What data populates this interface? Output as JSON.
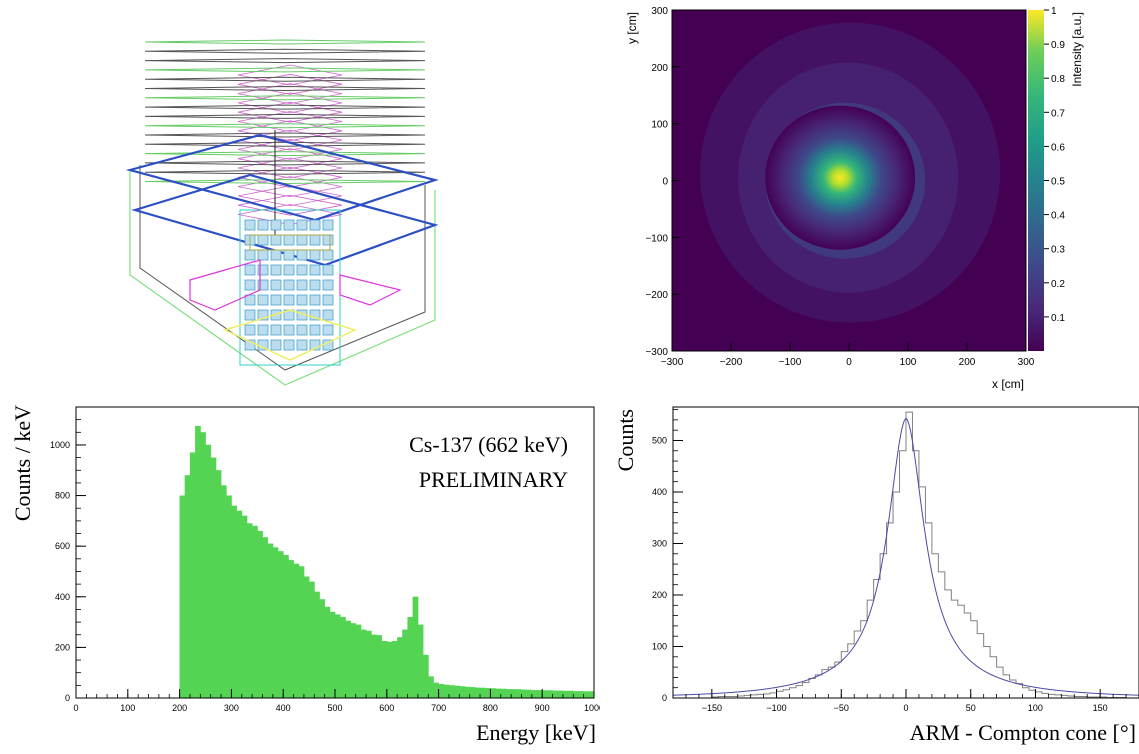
{
  "chart_data": [
    {
      "type": "image",
      "description_name": "detector-geometry"
    },
    {
      "type": "heatmap",
      "xlabel": "x [cm]",
      "ylabel": "y [cm]",
      "zlabel": "Intensity [a.u.]",
      "xlim": [
        -300,
        300
      ],
      "ylim": [
        -300,
        300
      ],
      "zlim": [
        0,
        1
      ],
      "x_ticks": [
        -300,
        -200,
        -100,
        0,
        100,
        200,
        300
      ],
      "y_ticks": [
        -300,
        -200,
        -100,
        0,
        100,
        200,
        300
      ],
      "z_ticks": [
        0.1,
        0.2,
        0.3,
        0.4,
        0.5,
        0.6,
        0.7,
        0.8,
        0.9,
        1
      ],
      "peak": {
        "x": -15,
        "y": 5,
        "value": 1
      },
      "colormap": "viridis"
    },
    {
      "type": "bar",
      "subtype": "histogram",
      "xlabel": "Energy [keV]",
      "ylabel": "Counts / keV",
      "annotations": [
        "Cs-137 (662 keV)",
        "PRELIMINARY"
      ],
      "xlim": [
        0,
        1000
      ],
      "ylim": [
        0,
        1150
      ],
      "x_ticks": [
        0,
        100,
        200,
        300,
        400,
        500,
        600,
        700,
        800,
        900,
        1000
      ],
      "y_ticks": [
        0,
        200,
        400,
        600,
        800,
        1000
      ],
      "fill_color": "#55d454",
      "bin_width": 10,
      "x": [
        200,
        210,
        220,
        230,
        240,
        250,
        260,
        270,
        280,
        290,
        300,
        310,
        320,
        330,
        340,
        350,
        360,
        370,
        380,
        390,
        400,
        410,
        420,
        430,
        440,
        450,
        460,
        470,
        480,
        490,
        500,
        510,
        520,
        530,
        540,
        550,
        560,
        570,
        580,
        590,
        600,
        610,
        620,
        630,
        640,
        650,
        660,
        670,
        680,
        690,
        700,
        710,
        720,
        730,
        740,
        750,
        760,
        770,
        780,
        790,
        800,
        810,
        820,
        830,
        840,
        850,
        860,
        870,
        880,
        890,
        900,
        910,
        920,
        930,
        940,
        950,
        960,
        970,
        980,
        990
      ],
      "values": [
        800,
        880,
        970,
        1075,
        1050,
        1000,
        950,
        900,
        840,
        800,
        760,
        740,
        720,
        690,
        680,
        660,
        635,
        610,
        595,
        580,
        565,
        545,
        530,
        520,
        480,
        460,
        420,
        390,
        360,
        340,
        330,
        320,
        305,
        295,
        290,
        270,
        265,
        250,
        248,
        225,
        222,
        225,
        240,
        270,
        320,
        400,
        290,
        170,
        85,
        60,
        55,
        52,
        50,
        48,
        46,
        44,
        43,
        41,
        40,
        39,
        38,
        37,
        36,
        35,
        35,
        34,
        33,
        32,
        31,
        31,
        30,
        30,
        29,
        29,
        28,
        28,
        27,
        27,
        26,
        26
      ]
    },
    {
      "type": "line",
      "subtype": "histogram-with-fit",
      "xlabel": "ARM - Compton cone [°]",
      "ylabel": "Counts",
      "xlim": [
        -180,
        180
      ],
      "ylim": [
        0,
        565
      ],
      "x_ticks": [
        -150,
        -100,
        -50,
        0,
        50,
        100,
        150
      ],
      "y_ticks": [
        0,
        100,
        200,
        300,
        400,
        500
      ],
      "hist_color": "#808080",
      "fit_color": "#4a4aa8",
      "bin_width": 5,
      "x": [
        -180,
        -175,
        -170,
        -165,
        -160,
        -155,
        -150,
        -145,
        -140,
        -135,
        -130,
        -125,
        -120,
        -115,
        -110,
        -105,
        -100,
        -95,
        -90,
        -85,
        -80,
        -75,
        -70,
        -65,
        -60,
        -55,
        -50,
        -45,
        -40,
        -35,
        -30,
        -25,
        -20,
        -15,
        -10,
        -5,
        0,
        5,
        10,
        15,
        20,
        25,
        30,
        35,
        40,
        45,
        50,
        55,
        60,
        65,
        70,
        75,
        80,
        85,
        90,
        95,
        100,
        105,
        110,
        115,
        120,
        125,
        130,
        135,
        140,
        145,
        150,
        155,
        160,
        165,
        170,
        175
      ],
      "values": [
        0,
        0,
        0,
        0,
        0,
        0,
        2,
        3,
        3,
        3,
        4,
        5,
        6,
        7,
        8,
        10,
        13,
        16,
        20,
        24,
        30,
        38,
        45,
        55,
        60,
        70,
        90,
        105,
        130,
        150,
        190,
        230,
        280,
        340,
        400,
        480,
        555,
        480,
        410,
        340,
        280,
        245,
        210,
        190,
        180,
        165,
        150,
        125,
        100,
        80,
        60,
        45,
        35,
        28,
        20,
        15,
        12,
        9,
        7,
        6,
        5,
        4,
        3,
        3,
        2,
        2,
        2,
        1,
        1,
        1,
        0,
        0
      ],
      "fit": {
        "model": "lorentzian-like",
        "peak_x": 0,
        "peak_y": 560
      }
    }
  ]
}
